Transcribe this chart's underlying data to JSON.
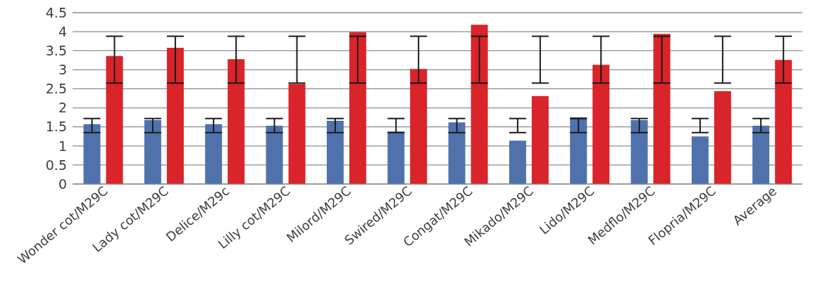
{
  "chart_data": {
    "type": "bar",
    "categories": [
      "Wonder cot/M29C",
      "Lady cot/M29C",
      "Delice/M29c",
      "Lilly cot/M29C",
      "Milord/M29C",
      "Swired/M29C",
      "Congat/M29C",
      "Mikado/M29C",
      "Lido/M29C",
      "Medflo/M29C",
      "Flopria/M29C",
      "Average"
    ],
    "series": [
      {
        "color": "#4f72ad",
        "values": [
          1.57,
          1.68,
          1.57,
          1.53,
          1.66,
          1.38,
          1.62,
          1.14,
          1.75,
          1.68,
          1.25,
          1.53
        ],
        "errors": [
          [
            1.35,
            1.72
          ],
          [
            1.35,
            1.72
          ],
          [
            1.35,
            1.72
          ],
          [
            1.35,
            1.72
          ],
          [
            1.35,
            1.72
          ],
          [
            1.35,
            1.72
          ],
          [
            1.35,
            1.72
          ],
          [
            1.35,
            1.72
          ],
          [
            1.35,
            1.72
          ],
          [
            1.35,
            1.72
          ],
          [
            1.35,
            1.72
          ],
          [
            1.35,
            1.72
          ]
        ]
      },
      {
        "color": "#d9242a",
        "values": [
          3.36,
          3.58,
          3.28,
          2.63,
          3.99,
          3.02,
          4.18,
          2.31,
          3.13,
          3.94,
          2.44,
          3.26
        ],
        "errors": [
          [
            2.65,
            3.88
          ],
          [
            2.65,
            3.88
          ],
          [
            2.65,
            3.88
          ],
          [
            2.65,
            3.88
          ],
          [
            2.65,
            3.88
          ],
          [
            2.65,
            3.88
          ],
          [
            2.65,
            3.88
          ],
          [
            2.65,
            3.88
          ],
          [
            2.65,
            3.88
          ],
          [
            2.65,
            3.88
          ],
          [
            2.65,
            3.88
          ],
          [
            2.65,
            3.88
          ]
        ]
      }
    ],
    "ylim": [
      0,
      4.5
    ],
    "yticks": [
      0,
      0.5,
      1,
      1.5,
      2,
      2.5,
      3,
      3.5,
      4,
      4.5
    ],
    "grid": "y"
  }
}
